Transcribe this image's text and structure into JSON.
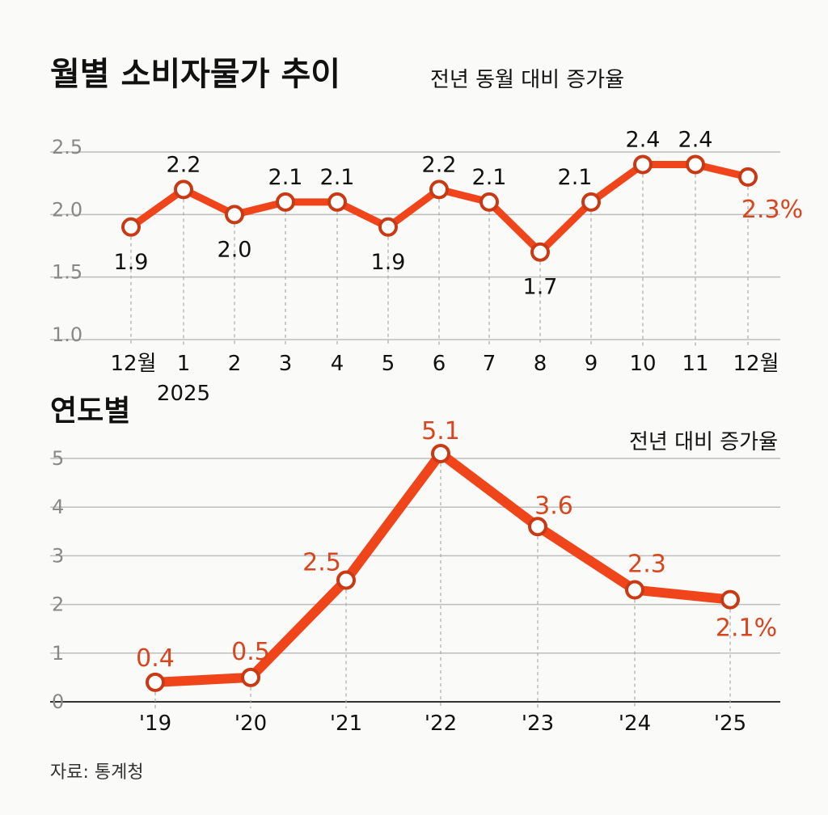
{
  "colors": {
    "line": "#f0451a",
    "accent_label": "#d9451f",
    "grid": "#bdbdbd",
    "text": "#111111"
  },
  "chart_data": [
    {
      "type": "line",
      "title": "월별 소비자물가 추이",
      "subtitle": "전년 동월 대비 증가율",
      "categories": [
        "12월",
        "1",
        "2",
        "3",
        "4",
        "5",
        "6",
        "7",
        "8",
        "9",
        "10",
        "11",
        "12월"
      ],
      "year_label": "2025",
      "values": [
        1.9,
        2.2,
        2.0,
        2.1,
        2.1,
        1.9,
        2.2,
        2.1,
        1.7,
        2.1,
        2.4,
        2.4,
        2.3
      ],
      "data_labels": [
        "1.9",
        "2.2",
        "2.0",
        "2.1",
        "2.1",
        "1.9",
        "2.2",
        "2.1",
        "1.7",
        "2.1",
        "2.4",
        "2.4",
        "2.3%"
      ],
      "yticks": [
        "2.5",
        "2.0",
        "1.5",
        "1.0"
      ],
      "ylim": [
        1.0,
        2.5
      ],
      "grid": true
    },
    {
      "type": "line",
      "title": "연도별",
      "subtitle": "전년 대비 증가율",
      "categories": [
        "'19",
        "'20",
        "'21",
        "'22",
        "'23",
        "'24",
        "'25"
      ],
      "values": [
        0.4,
        0.5,
        2.5,
        5.1,
        3.6,
        2.3,
        2.1
      ],
      "data_labels": [
        "0.4",
        "0.5",
        "2.5",
        "5.1",
        "3.6",
        "2.3",
        "2.1%"
      ],
      "yticks": [
        "5",
        "4",
        "3",
        "2",
        "1",
        "0"
      ],
      "ylim": [
        0,
        5
      ],
      "grid": true
    }
  ],
  "source": "자료: 통계청"
}
